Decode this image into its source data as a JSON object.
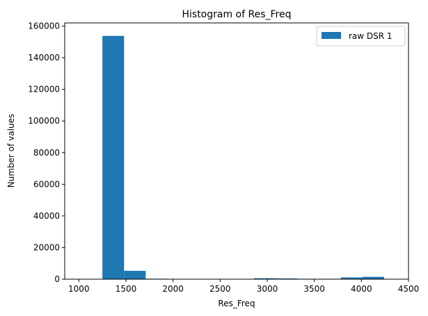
{
  "chart_data": {
    "type": "bar",
    "title": "Histogram of Res_Freq",
    "xlabel": "Res_Freq",
    "ylabel": "Number of values",
    "xlim": [
      850,
      4500
    ],
    "ylim": [
      0,
      162000
    ],
    "xticks": [
      1000,
      1500,
      2000,
      2500,
      3000,
      3500,
      4000,
      4500
    ],
    "yticks": [
      0,
      20000,
      40000,
      60000,
      80000,
      100000,
      120000,
      140000,
      160000
    ],
    "grid": false,
    "legend_position": "top-right",
    "bar_color": "#1f77b4",
    "series": [
      {
        "name": "raw DSR 1",
        "bins": [
          {
            "x0": 1250,
            "x1": 1480,
            "value": 153800
          },
          {
            "x0": 1480,
            "x1": 1710,
            "value": 5300
          },
          {
            "x0": 1710,
            "x1": 1940,
            "value": 300
          },
          {
            "x0": 1940,
            "x1": 2170,
            "value": 200
          },
          {
            "x0": 2170,
            "x1": 2400,
            "value": 150
          },
          {
            "x0": 2400,
            "x1": 2630,
            "value": 150
          },
          {
            "x0": 2630,
            "x1": 2860,
            "value": 200
          },
          {
            "x0": 2860,
            "x1": 3090,
            "value": 600
          },
          {
            "x0": 3090,
            "x1": 3320,
            "value": 500
          },
          {
            "x0": 3320,
            "x1": 3550,
            "value": 250
          },
          {
            "x0": 3550,
            "x1": 3780,
            "value": 250
          },
          {
            "x0": 3780,
            "x1": 4010,
            "value": 1100
          },
          {
            "x0": 4010,
            "x1": 4240,
            "value": 1500
          }
        ]
      }
    ]
  }
}
